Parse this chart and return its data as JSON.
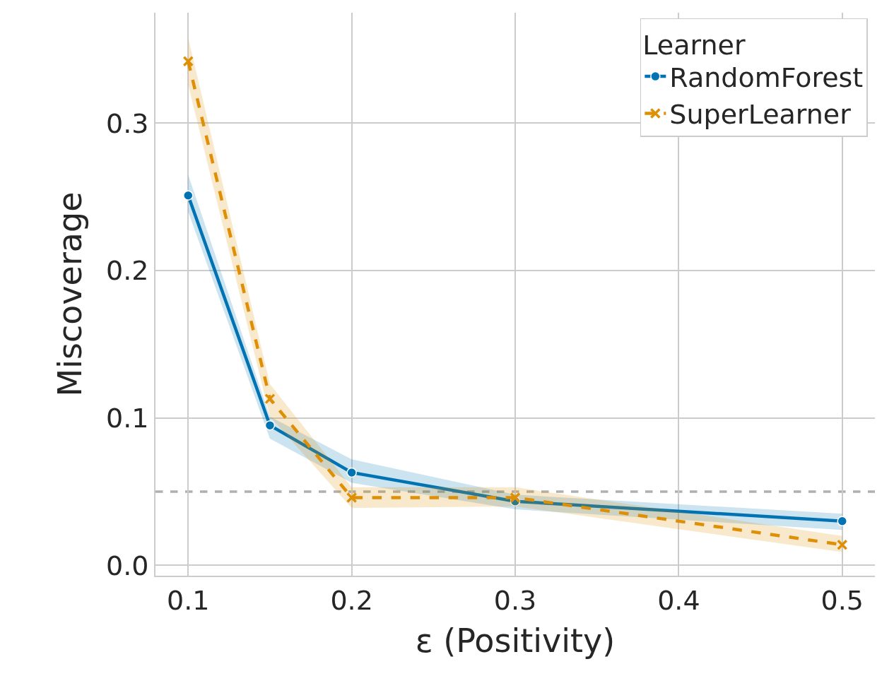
{
  "chart_data": {
    "type": "line",
    "xlabel": "ε (Positivity)",
    "ylabel": "Miscoverage",
    "legend_title": "Learner",
    "x": [
      0.1,
      0.15,
      0.2,
      0.3,
      0.5
    ],
    "series": [
      {
        "name": "RandomForest",
        "color": "#0173b2",
        "marker": "circle",
        "line_style": "solid",
        "values": [
          0.251,
          0.095,
          0.063,
          0.0435,
          0.03
        ],
        "lower": [
          0.24,
          0.086,
          0.056,
          0.038,
          0.024
        ],
        "upper": [
          0.265,
          0.101,
          0.072,
          0.048,
          0.035
        ]
      },
      {
        "name": "SuperLearner",
        "color": "#de8f05",
        "marker": "cross",
        "line_style": "dashed",
        "values": [
          0.342,
          0.113,
          0.046,
          0.046,
          0.014
        ],
        "lower": [
          0.326,
          0.101,
          0.039,
          0.04,
          0.009
        ],
        "upper": [
          0.358,
          0.123,
          0.053,
          0.053,
          0.02
        ]
      }
    ],
    "ref_lines": [
      {
        "axis": "y",
        "value": 0.05,
        "color": "#b0b0b0",
        "line_style": "dashed"
      }
    ],
    "xlim": [
      0.08,
      0.52
    ],
    "xticks": [
      0.1,
      0.2,
      0.3,
      0.4,
      0.5
    ],
    "ylim": [
      -0.007,
      0.375
    ],
    "yticks": [
      {
        "value": 0,
        "label": "0.0"
      },
      0.1,
      0.2,
      0.3
    ],
    "grid": true,
    "legend": "top right"
  }
}
